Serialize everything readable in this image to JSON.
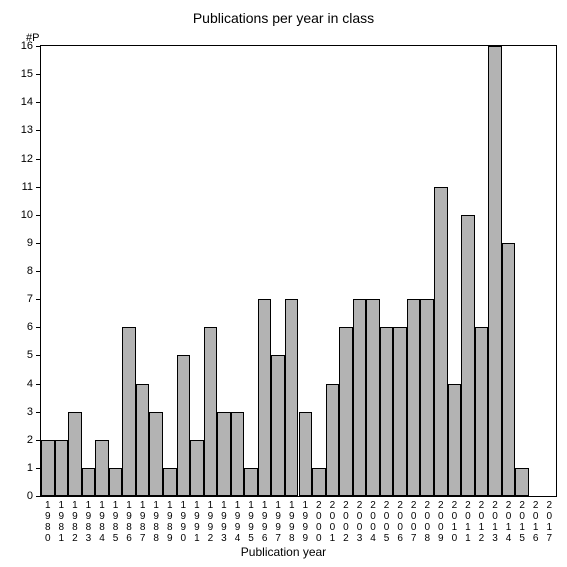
{
  "chart": {
    "type": "bar",
    "title": "Publications per year in class",
    "y_axis_label": "#P",
    "x_axis_label": "Publication year",
    "title_fontsize": 14,
    "label_fontsize": 12,
    "tick_fontsize": 11,
    "background_color": "#ffffff",
    "bar_fill_color": "#b3b3b3",
    "bar_border_color": "#000000",
    "axis_color": "#000000",
    "text_color": "#000000",
    "ylim": [
      0,
      16
    ],
    "ytick_step": 1,
    "bar_width_ratio": 1.0,
    "categories": [
      "1980",
      "1981",
      "1982",
      "1983",
      "1984",
      "1985",
      "1986",
      "1987",
      "1988",
      "1989",
      "1990",
      "1991",
      "1992",
      "1993",
      "1994",
      "1995",
      "1996",
      "1997",
      "1998",
      "1999",
      "2000",
      "2001",
      "2002",
      "2003",
      "2004",
      "2005",
      "2006",
      "2007",
      "2008",
      "2009",
      "2010",
      "2011",
      "2012",
      "2013",
      "2014",
      "2015",
      "2016",
      "2017"
    ],
    "values": [
      2,
      2,
      3,
      1,
      2,
      1,
      6,
      4,
      3,
      1,
      5,
      2,
      6,
      3,
      3,
      1,
      7,
      5,
      7,
      3,
      1,
      4,
      6,
      7,
      7,
      6,
      6,
      7,
      7,
      11,
      4,
      10,
      6,
      16,
      9,
      1,
      0,
      0
    ]
  }
}
